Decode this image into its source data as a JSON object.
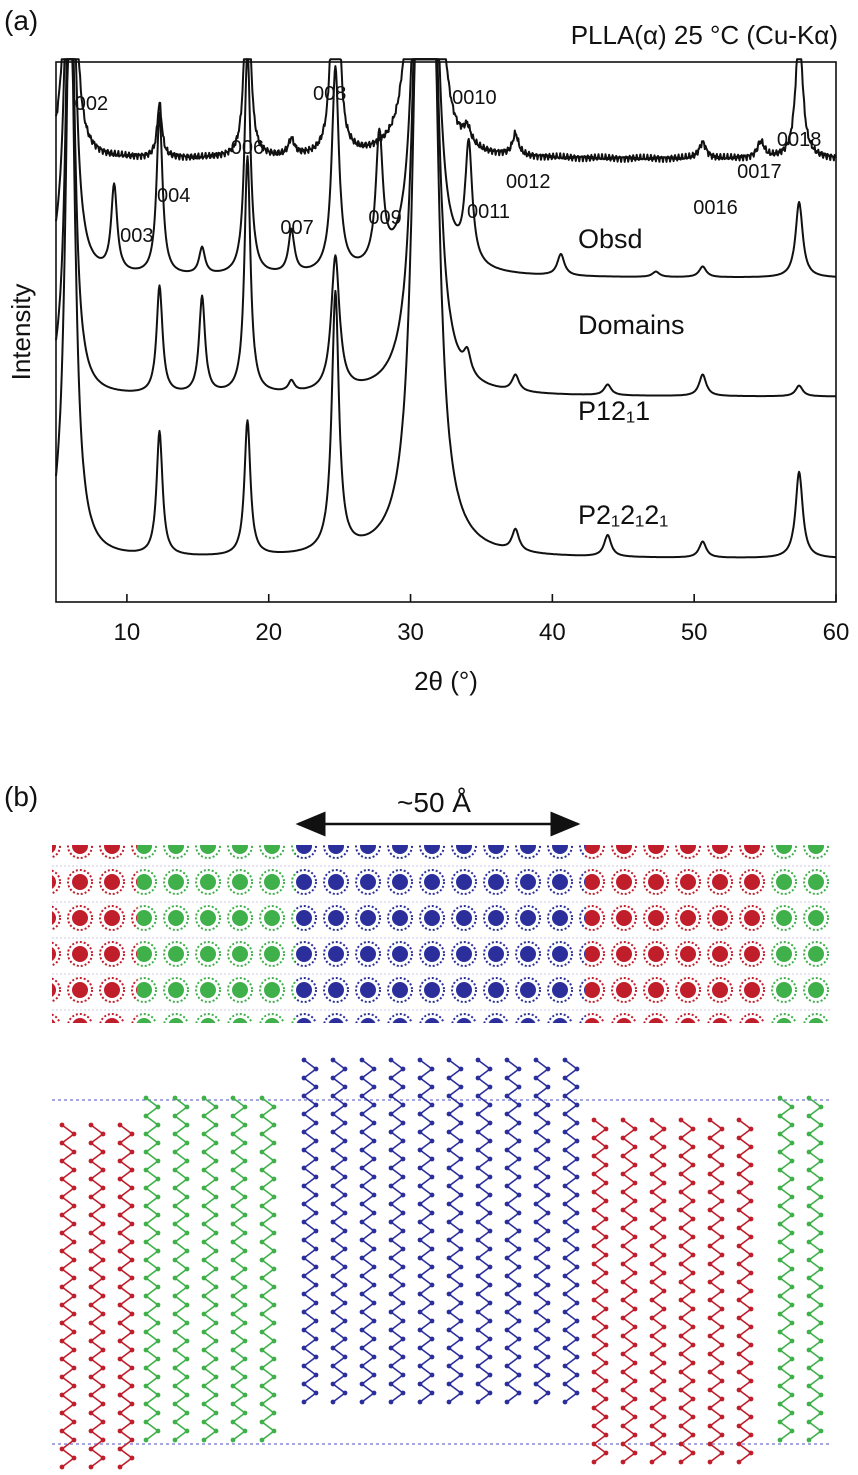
{
  "panel_a": {
    "label": "(a)"
  },
  "panel_b": {
    "label": "(b)",
    "scale_label": "~50 Å"
  },
  "colors": {
    "domain_red": "#c01e2b",
    "domain_green": "#3fb04a",
    "domain_blue": "#2b2f9c",
    "line": "#111111"
  },
  "chart_data": {
    "type": "line",
    "title": "PLLA(α) 25 °C (Cu-Kα)",
    "xlabel": "2θ (°)",
    "ylabel": "Intensity",
    "xlim": [
      5,
      60
    ],
    "xticks": [
      10,
      20,
      30,
      40,
      50,
      60
    ],
    "y_ticks_shown": false,
    "grid": false,
    "stacked_offset": true,
    "series": [
      {
        "name": "Obsd",
        "baseline": 82,
        "peaks": [
          [
            6.0,
            130,
            0.25
          ],
          [
            12.3,
            10,
            0.2
          ],
          [
            18.5,
            44,
            0.22
          ],
          [
            21.6,
            3,
            0.25
          ],
          [
            24.7,
            75,
            0.22
          ],
          [
            30.4,
            120,
            0.35
          ],
          [
            31.6,
            120,
            0.35
          ],
          [
            34.0,
            3,
            0.3
          ],
          [
            37.4,
            4,
            0.25
          ],
          [
            50.6,
            3,
            0.3
          ],
          [
            54.7,
            3,
            0.3
          ],
          [
            57.4,
            24,
            0.3
          ]
        ]
      },
      {
        "name": "Domains",
        "baseline": 60,
        "peaks": [
          [
            6.0,
            95,
            0.35
          ],
          [
            9.1,
            16,
            0.25
          ],
          [
            12.3,
            30,
            0.25
          ],
          [
            15.3,
            5,
            0.25
          ],
          [
            18.5,
            42,
            0.25
          ],
          [
            21.6,
            8,
            0.25
          ],
          [
            24.7,
            38,
            0.3
          ],
          [
            27.8,
            24,
            0.3
          ],
          [
            30.6,
            80,
            0.45
          ],
          [
            31.5,
            80,
            0.45
          ],
          [
            34.1,
            22,
            0.3
          ],
          [
            40.6,
            4,
            0.3
          ],
          [
            47.3,
            1,
            0.3
          ],
          [
            50.6,
            2,
            0.3
          ],
          [
            57.4,
            14,
            0.3
          ]
        ]
      },
      {
        "name": "P12₁1",
        "baseline": 38,
        "peaks": [
          [
            6.0,
            95,
            0.35
          ],
          [
            12.3,
            20,
            0.25
          ],
          [
            15.3,
            18,
            0.25
          ],
          [
            18.5,
            44,
            0.25
          ],
          [
            21.6,
            2,
            0.25
          ],
          [
            24.7,
            25,
            0.35
          ],
          [
            30.6,
            85,
            0.5
          ],
          [
            31.5,
            85,
            0.5
          ],
          [
            34.0,
            4,
            0.3
          ],
          [
            37.4,
            3,
            0.3
          ],
          [
            43.9,
            2,
            0.3
          ],
          [
            50.6,
            4,
            0.3
          ],
          [
            57.4,
            2,
            0.3
          ]
        ]
      },
      {
        "name": "P2₁2₁2₁",
        "baseline": 8,
        "peaks": [
          [
            6.0,
            110,
            0.4
          ],
          [
            12.3,
            23,
            0.25
          ],
          [
            18.5,
            25,
            0.25
          ],
          [
            24.7,
            48,
            0.3
          ],
          [
            30.6,
            100,
            0.55
          ],
          [
            31.5,
            100,
            0.55
          ],
          [
            37.4,
            4,
            0.3
          ],
          [
            43.9,
            4,
            0.3
          ],
          [
            50.6,
            3,
            0.3
          ],
          [
            57.4,
            16,
            0.3
          ]
        ]
      }
    ],
    "annotations": [
      {
        "text": "002",
        "x": 7.5
      },
      {
        "text": "003",
        "x": 10.7
      },
      {
        "text": "004",
        "x": 13.3
      },
      {
        "text": "006",
        "x": 18.5
      },
      {
        "text": "007",
        "x": 22.0
      },
      {
        "text": "008",
        "x": 24.3
      },
      {
        "text": "009",
        "x": 28.2
      },
      {
        "text": "0010",
        "x": 34.5
      },
      {
        "text": "0011",
        "x": 35.5
      },
      {
        "text": "0012",
        "x": 38.3
      },
      {
        "text": "0016",
        "x": 51.5
      },
      {
        "text": "0017",
        "x": 54.6
      },
      {
        "text": "0018",
        "x": 57.4
      }
    ]
  }
}
